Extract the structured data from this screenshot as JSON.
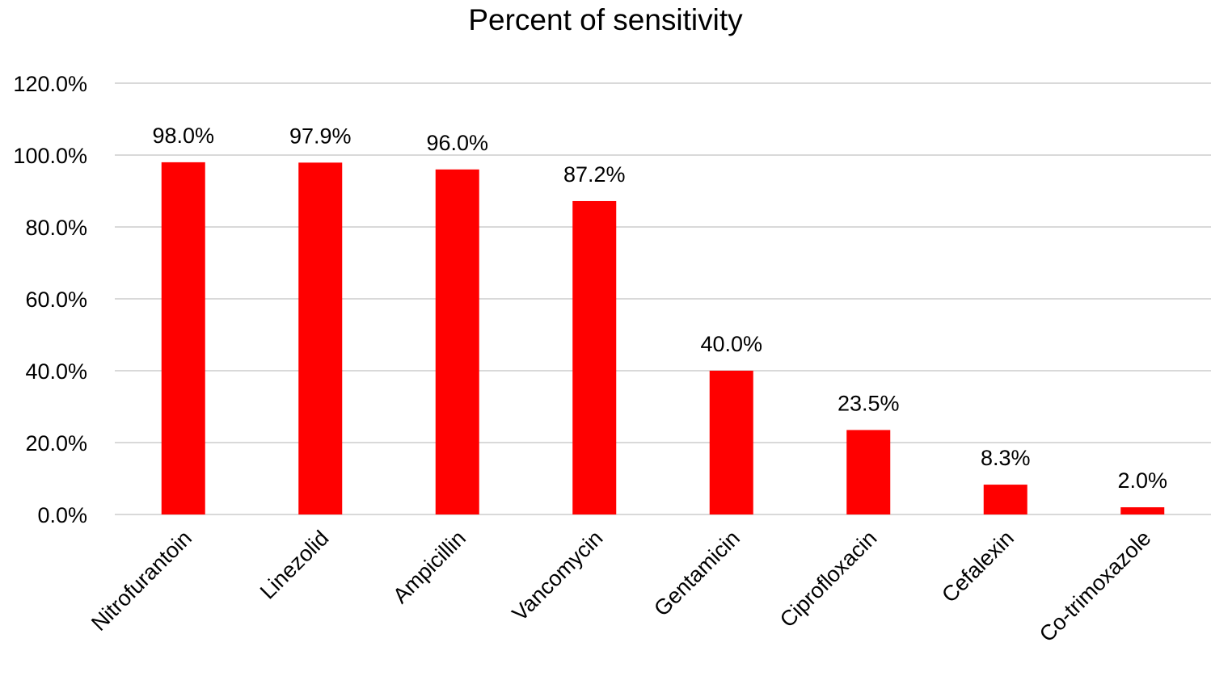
{
  "chart_data": {
    "type": "bar",
    "title": "Percent of sensitivity",
    "xlabel": "",
    "ylabel": "",
    "categories": [
      "Nitrofurantoin",
      "Linezolid",
      "Ampicillin",
      "Vancomycin",
      "Gentamicin",
      "Ciprofloxacin",
      "Cefalexin",
      "Co-trimoxazole"
    ],
    "values": [
      98.0,
      97.9,
      96.0,
      87.2,
      40.0,
      23.5,
      8.3,
      2.0
    ],
    "data_labels": [
      "98.0%",
      "97.9%",
      "96.0%",
      "87.2%",
      "40.0%",
      "23.5%",
      "8.3%",
      "2.0%"
    ],
    "ylim": [
      0,
      120
    ],
    "yticks": [
      0,
      20,
      40,
      60,
      80,
      100,
      120
    ],
    "ytick_labels": [
      "0.0%",
      "20.0%",
      "40.0%",
      "60.0%",
      "80.0%",
      "100.0%",
      "120.0%"
    ],
    "grid": true,
    "legend": "none",
    "bar_color": "#ff0000",
    "grid_color": "#d9d9d9"
  }
}
